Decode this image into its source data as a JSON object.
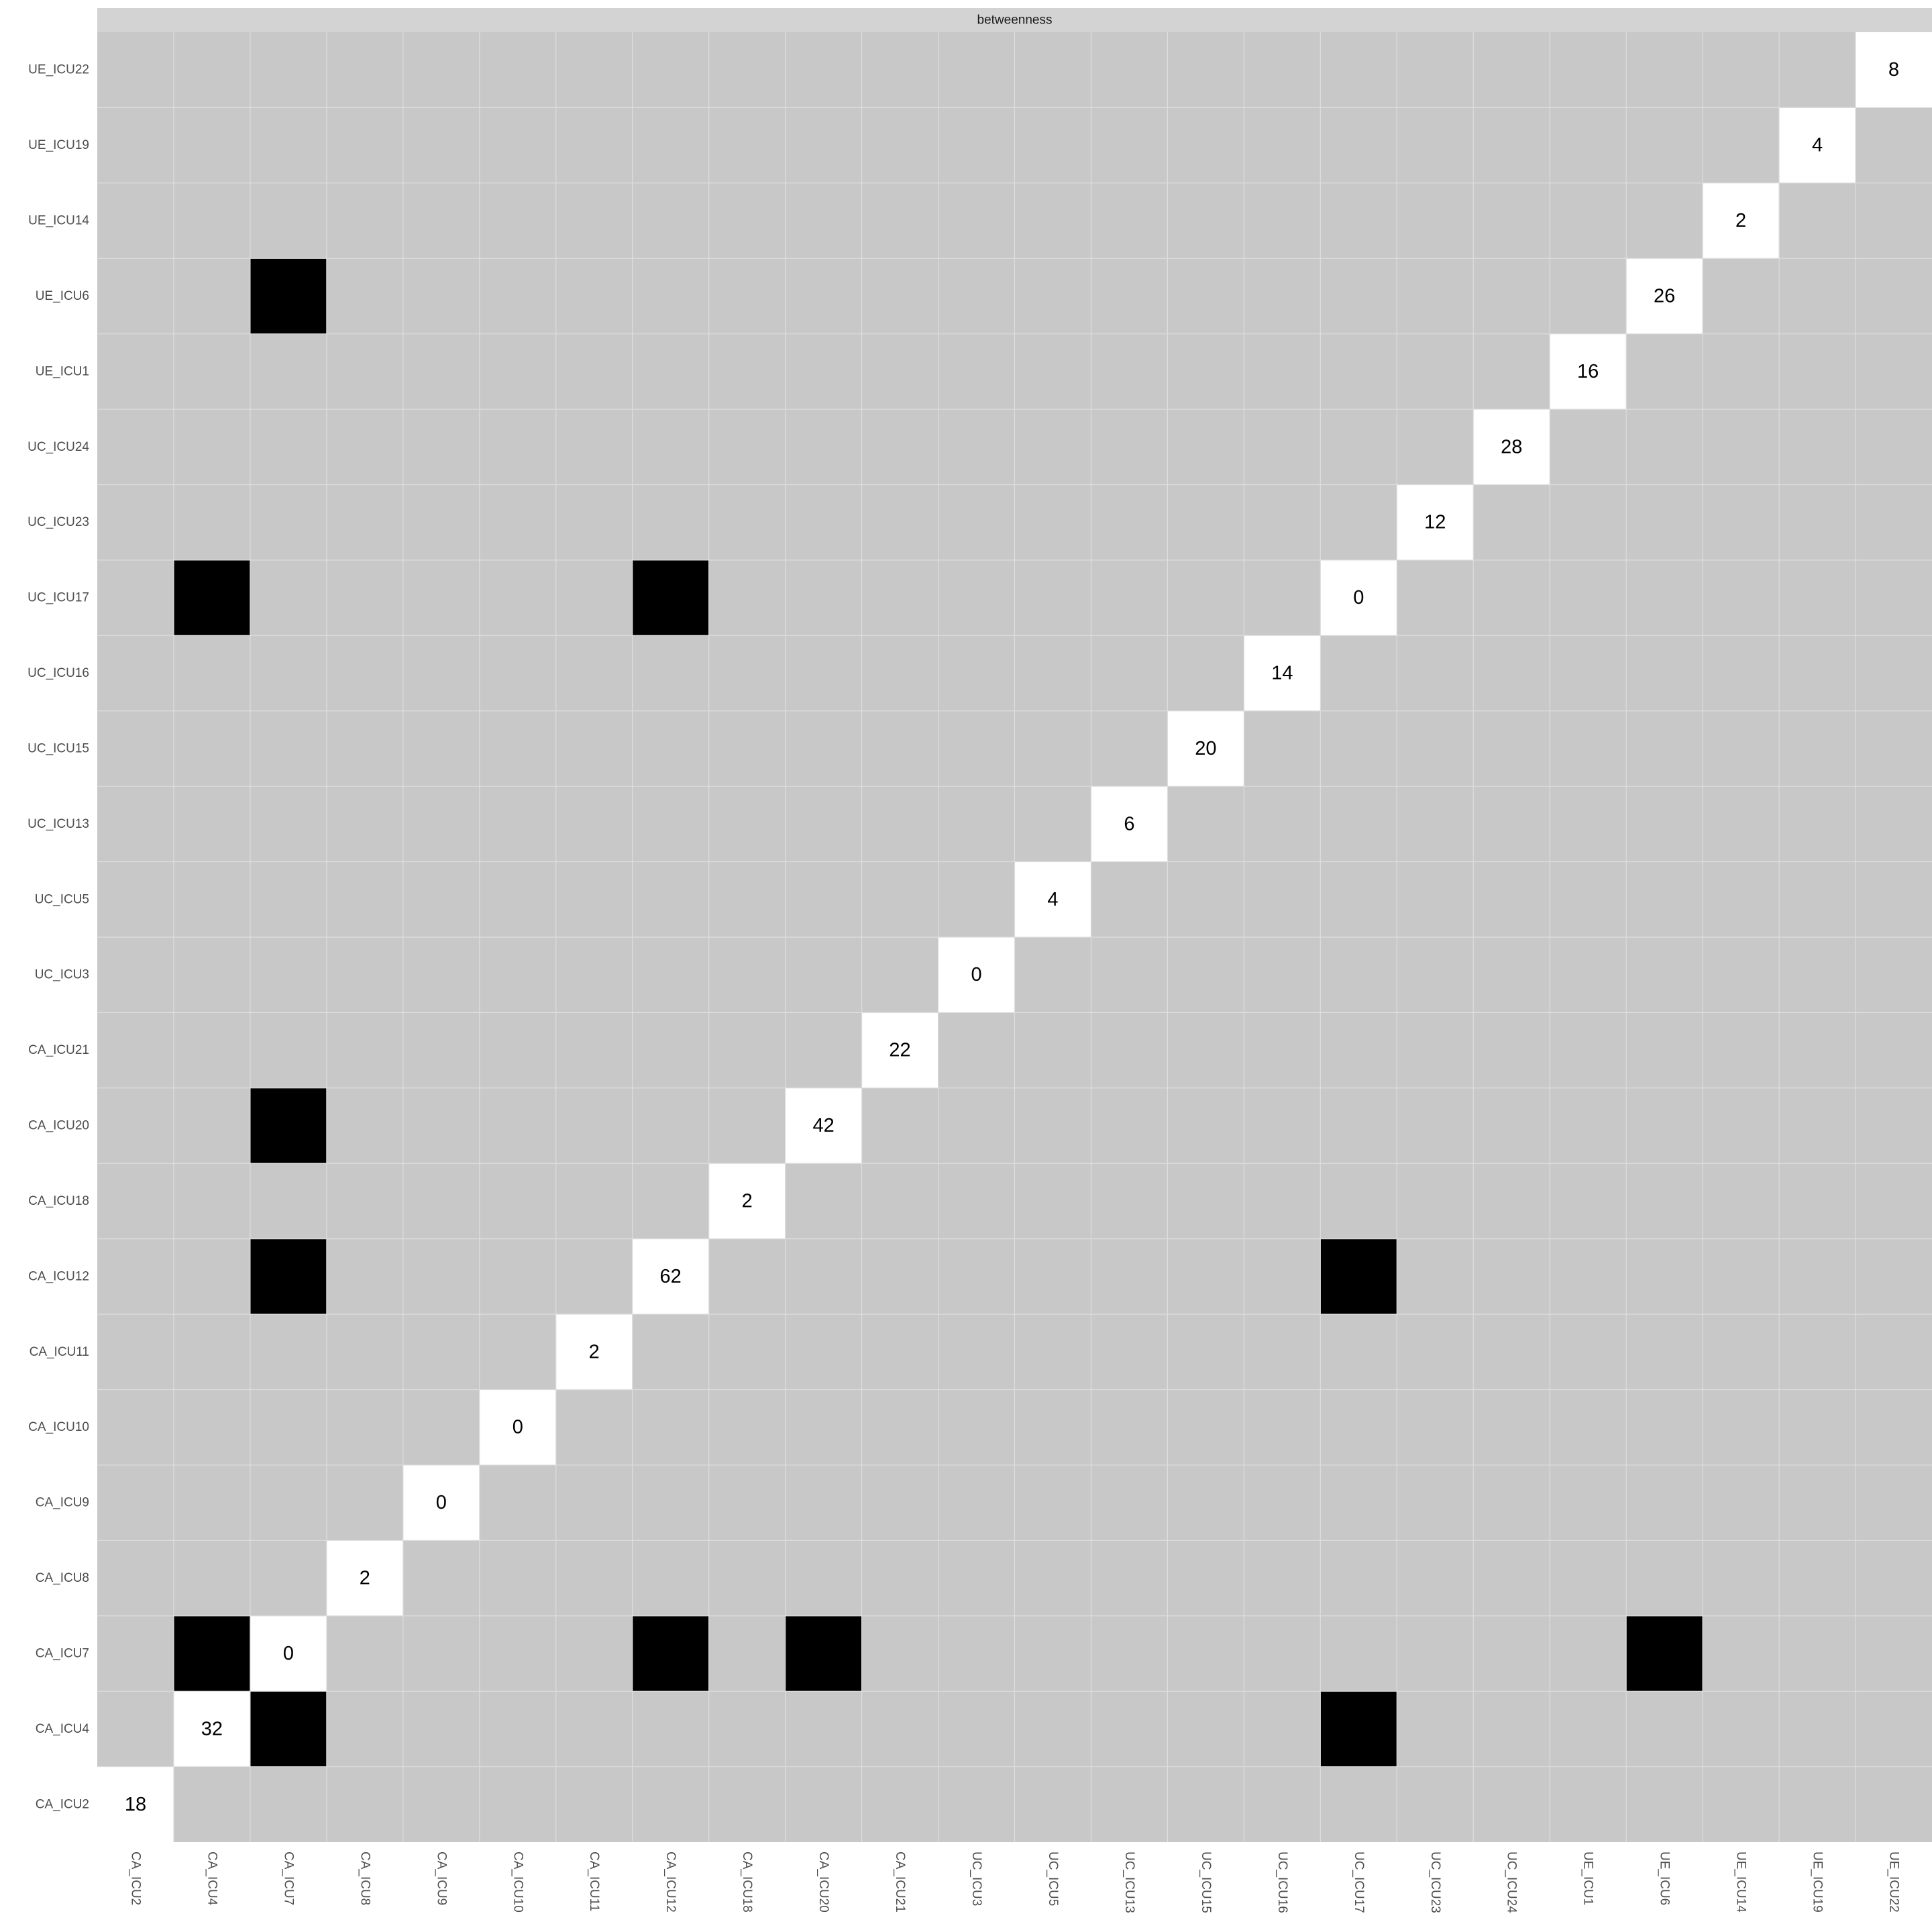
{
  "chart_data": {
    "type": "heatmap",
    "facet_label": "betweenness",
    "x_categories": [
      "CA_ICU2",
      "CA_ICU4",
      "CA_ICU7",
      "CA_ICU8",
      "CA_ICU9",
      "CA_ICU10",
      "CA_ICU11",
      "CA_ICU12",
      "CA_ICU18",
      "CA_ICU20",
      "CA_ICU21",
      "UC_ICU3",
      "UC_ICU5",
      "UC_ICU13",
      "UC_ICU15",
      "UC_ICU16",
      "UC_ICU17",
      "UC_ICU23",
      "UC_ICU24",
      "UE_ICU1",
      "UE_ICU6",
      "UE_ICU14",
      "UE_ICU19",
      "UE_ICU22"
    ],
    "y_categories": [
      "CA_ICU2",
      "CA_ICU4",
      "CA_ICU7",
      "CA_ICU8",
      "CA_ICU9",
      "CA_ICU10",
      "CA_ICU11",
      "CA_ICU12",
      "CA_ICU18",
      "CA_ICU20",
      "CA_ICU21",
      "UC_ICU3",
      "UC_ICU5",
      "UC_ICU13",
      "UC_ICU15",
      "UC_ICU16",
      "UC_ICU17",
      "UC_ICU23",
      "UC_ICU24",
      "UE_ICU1",
      "UE_ICU6",
      "UE_ICU14",
      "UE_ICU19",
      "UE_ICU22"
    ],
    "diagonal_values": [
      {
        "node": "CA_ICU2",
        "value": 18
      },
      {
        "node": "CA_ICU4",
        "value": 32
      },
      {
        "node": "CA_ICU7",
        "value": 0
      },
      {
        "node": "CA_ICU8",
        "value": 2
      },
      {
        "node": "CA_ICU9",
        "value": 0
      },
      {
        "node": "CA_ICU10",
        "value": 0
      },
      {
        "node": "CA_ICU11",
        "value": 2
      },
      {
        "node": "CA_ICU12",
        "value": 62
      },
      {
        "node": "CA_ICU18",
        "value": 2
      },
      {
        "node": "CA_ICU20",
        "value": 42
      },
      {
        "node": "CA_ICU21",
        "value": 22
      },
      {
        "node": "UC_ICU3",
        "value": 0
      },
      {
        "node": "UC_ICU5",
        "value": 4
      },
      {
        "node": "UC_ICU13",
        "value": 6
      },
      {
        "node": "UC_ICU15",
        "value": 20
      },
      {
        "node": "UC_ICU16",
        "value": 14
      },
      {
        "node": "UC_ICU17",
        "value": 0
      },
      {
        "node": "UC_ICU23",
        "value": 12
      },
      {
        "node": "UC_ICU24",
        "value": 28
      },
      {
        "node": "UE_ICU1",
        "value": 16
      },
      {
        "node": "UE_ICU6",
        "value": 26
      },
      {
        "node": "UE_ICU14",
        "value": 2
      },
      {
        "node": "UE_ICU19",
        "value": 4
      },
      {
        "node": "UE_ICU22",
        "value": 8
      }
    ],
    "edges": [
      {
        "row": "CA_ICU4",
        "col": "CA_ICU7"
      },
      {
        "row": "CA_ICU4",
        "col": "UC_ICU17"
      },
      {
        "row": "CA_ICU7",
        "col": "CA_ICU4"
      },
      {
        "row": "CA_ICU7",
        "col": "CA_ICU12"
      },
      {
        "row": "CA_ICU7",
        "col": "CA_ICU20"
      },
      {
        "row": "CA_ICU7",
        "col": "UE_ICU6"
      },
      {
        "row": "CA_ICU12",
        "col": "CA_ICU7"
      },
      {
        "row": "CA_ICU12",
        "col": "UC_ICU17"
      },
      {
        "row": "CA_ICU20",
        "col": "CA_ICU7"
      },
      {
        "row": "UC_ICU17",
        "col": "CA_ICU4"
      },
      {
        "row": "UC_ICU17",
        "col": "CA_ICU12"
      },
      {
        "row": "UE_ICU6",
        "col": "CA_ICU7"
      }
    ],
    "colors": {
      "background_cell": "#c8c8c8",
      "edge_cell": "#000000",
      "diagonal_cell": "#ffffff",
      "strip": "#d3d3d3",
      "grid_line": "#dedede"
    },
    "grid": true,
    "legend": "none"
  }
}
